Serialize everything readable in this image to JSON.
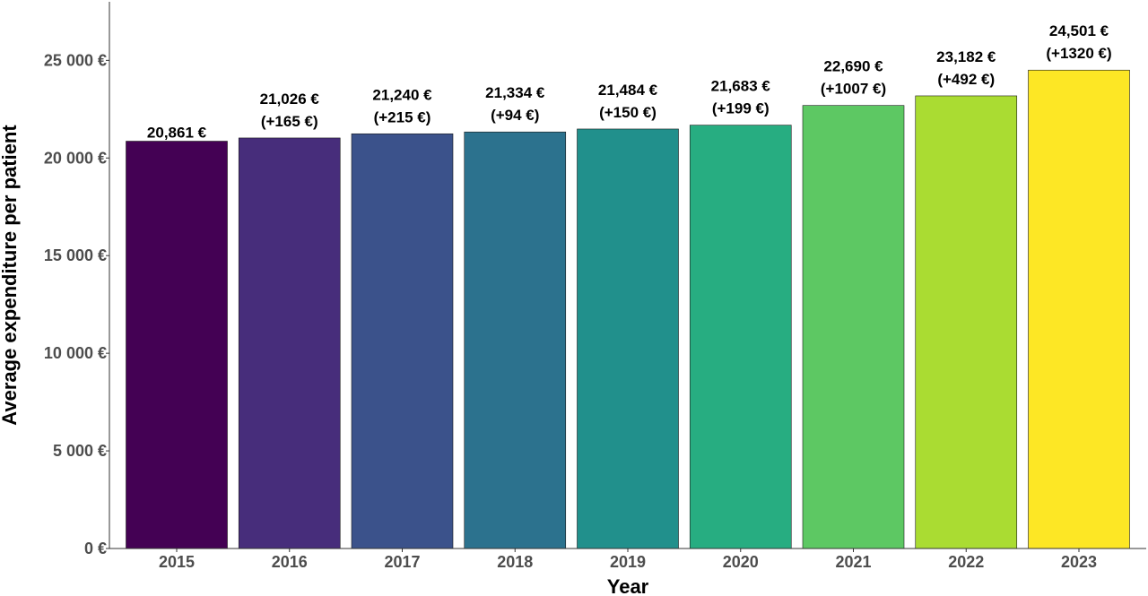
{
  "chart_data": {
    "type": "bar",
    "categories": [
      "2015",
      "2016",
      "2017",
      "2018",
      "2019",
      "2020",
      "2021",
      "2022",
      "2023"
    ],
    "values": [
      20861,
      21026,
      21240,
      21334,
      21484,
      21683,
      22690,
      23182,
      24501
    ],
    "value_labels": [
      "20,861 €",
      "21,026 €",
      "21,240 €",
      "21,334 €",
      "21,484 €",
      "21,683 €",
      "22,690 €",
      "23,182 €",
      "24,501 €"
    ],
    "change_labels": [
      "",
      "(+165 €)",
      "(+215 €)",
      "(+94 €)",
      "(+150 €)",
      "(+199 €)",
      "(+1007 €)",
      "(+492 €)",
      "(+1320 €)"
    ],
    "colors": [
      "#440154",
      "#472D7B",
      "#3B528B",
      "#2C728E",
      "#21908C",
      "#27AD81",
      "#5DC863",
      "#AADC32",
      "#FDE725"
    ],
    "xlabel": "Year",
    "ylabel": "Average expenditure per patient",
    "ylim": [
      0,
      28000
    ],
    "yticks": [
      0,
      5000,
      10000,
      15000,
      20000,
      25000
    ],
    "ytick_labels": [
      "0 €",
      "5 000 €",
      "10 000 €",
      "15 000 €",
      "20 000 €",
      "25 000 €"
    ],
    "grid": false,
    "legend": "none"
  }
}
